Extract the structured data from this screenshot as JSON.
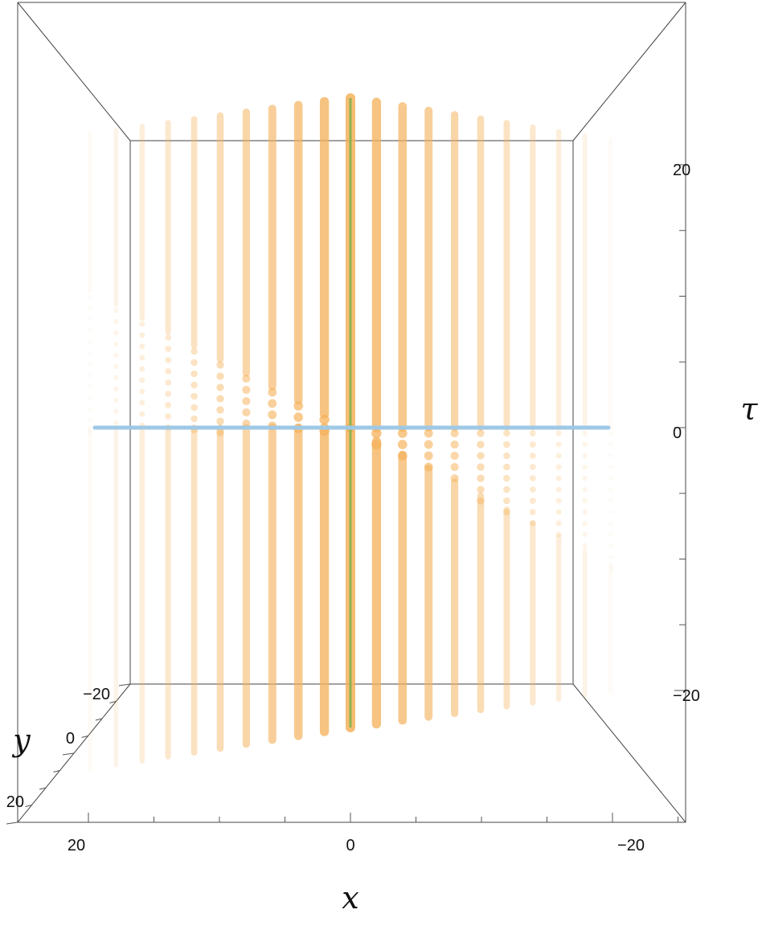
{
  "chart_data": {
    "type": "3d-line",
    "title": "",
    "axes": {
      "x": {
        "label": "x",
        "ticks": [
          "20",
          "0",
          "−20"
        ],
        "tick_values": [
          20,
          0,
          -20
        ],
        "range": [
          24,
          -24
        ]
      },
      "y": {
        "label": "y",
        "ticks": [
          "−20",
          "0",
          "20"
        ],
        "tick_values": [
          -20,
          0,
          20
        ],
        "range": [
          -24,
          24
        ]
      },
      "tau": {
        "label": "τ",
        "ticks": [
          "20",
          "0",
          "−20"
        ],
        "tick_values": [
          20,
          0,
          -20
        ],
        "range": [
          -24,
          24
        ]
      }
    },
    "series": [
      {
        "role": "worldlines",
        "color": "#f5b25c",
        "note_values_x": [
          -20,
          -18,
          -16,
          -14,
          -12,
          -10,
          -8,
          -6,
          -4,
          -2,
          0,
          2,
          4,
          6,
          8,
          10,
          12,
          14,
          16,
          18,
          20
        ],
        "tau_range": [
          -20,
          20
        ]
      },
      {
        "role": "highlight-line",
        "color": "#7fb24a",
        "x": 0,
        "tau_range": [
          -20,
          20
        ]
      },
      {
        "role": "horizontal-line",
        "color": "#9ec9e6",
        "tau": 0,
        "x_range": [
          19.5,
          -19.5
        ]
      }
    ],
    "grid": false,
    "legend": "none"
  }
}
